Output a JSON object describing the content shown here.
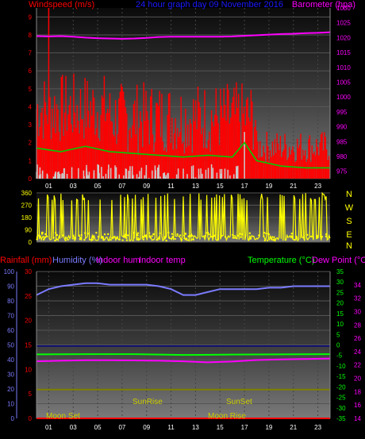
{
  "header": {
    "left": "Windspeed (m/s)",
    "center": "24 hour graph day  09 November 2016",
    "right": "Barometer (hpa)"
  },
  "colors": {
    "wind": "#ff0000",
    "wind_avg": "#00cc00",
    "gust_bars": "#cccccc",
    "barometer": "#ff00ff",
    "direction": "#ffff00",
    "rain": "#ff0000",
    "humidity": "#7b7bff",
    "indoor_hum": "#ff00ff",
    "indoor_temp": "#ff00ff",
    "temperature": "#00ff00",
    "dew_point": "#ff00ff",
    "axis_tick": "#ffff00"
  },
  "chart_data": [
    {
      "type": "line",
      "title": "24 hour graph day  09 November 2016",
      "x_ticks": [
        "01",
        "03",
        "05",
        "07",
        "09",
        "11",
        "13",
        "15",
        "17",
        "19",
        "21",
        "23"
      ],
      "xlim": [
        0,
        24
      ],
      "left_axis": {
        "label": "Windspeed (m/s)",
        "ylim": [
          0,
          9.5
        ],
        "ticks": [
          "0",
          "1",
          "2",
          "3",
          "4",
          "5",
          "6",
          "7",
          "8",
          "9"
        ]
      },
      "right_axis": {
        "label": "Barometer (hpa)",
        "ylim": [
          972.5,
          1030
        ],
        "ticks": [
          "975",
          "980",
          "985",
          "990",
          "995",
          "1000",
          "1005",
          "1010",
          "1015",
          "1020",
          "1025",
          "1030"
        ]
      },
      "series": [
        {
          "axis": "right",
          "x": [
            0,
            1,
            2,
            3,
            4,
            5,
            6,
            7,
            8,
            9,
            10,
            11,
            12,
            13,
            14,
            15,
            16,
            17,
            18,
            19,
            20,
            21,
            22,
            23,
            24
          ],
          "values": [
            1020.5,
            1020.4,
            1020.5,
            1020.3,
            1020.0,
            1019.8,
            1019.7,
            1019.6,
            1019.7,
            1019.9,
            1020.2,
            1020.3,
            1020.3,
            1020.3,
            1020.3,
            1020.3,
            1020.4,
            1020.6,
            1020.8,
            1021.0,
            1021.2,
            1021.3,
            1021.5,
            1021.6,
            1021.8
          ]
        },
        {
          "axis": "left",
          "x": [
            0,
            2,
            4,
            6,
            8,
            10,
            12,
            14,
            16,
            17,
            18,
            20,
            22,
            24
          ],
          "values": [
            1.7,
            1.5,
            1.8,
            1.5,
            1.4,
            1.3,
            1.2,
            1.3,
            1.2,
            2.0,
            1.0,
            0.7,
            0.6,
            0.6
          ]
        }
      ]
    },
    {
      "type": "scatter",
      "xlim": [
        0,
        24
      ],
      "ylim": [
        0,
        360
      ],
      "y_ticks": [
        "0",
        "90",
        "180",
        "270",
        "360"
      ],
      "direction_labels": [
        "N",
        "W",
        "S",
        "E",
        "N"
      ]
    },
    {
      "type": "line",
      "xlim": [
        0,
        24
      ],
      "legend": [
        "Rainfall (mm)",
        "Humidity (%)",
        "Indoor hum",
        "Indoor temp",
        "Temperature (°C)",
        "Dew Point (°C)"
      ],
      "axes": {
        "rain": {
          "ylim": [
            0,
            30
          ],
          "ticks": [
            "0",
            "5",
            "10",
            "15",
            "20",
            "25",
            "30"
          ]
        },
        "humidity": {
          "ylim": [
            0,
            100
          ],
          "ticks": [
            "0",
            "10",
            "20",
            "30",
            "40",
            "50",
            "60",
            "70",
            "80",
            "90",
            "100"
          ]
        },
        "temperature": {
          "ylim": [
            -35,
            35
          ],
          "ticks": [
            "-35",
            "-30",
            "-25",
            "-20",
            "-15",
            "-10",
            "-5",
            "0",
            "5",
            "10",
            "15",
            "20",
            "25",
            "30",
            "35"
          ]
        },
        "dew_point": {
          "ylim": [
            14,
            36
          ],
          "ticks": [
            "14",
            "16",
            "18",
            "20",
            "22",
            "24",
            "26",
            "28",
            "30",
            "32",
            "34"
          ]
        }
      },
      "series": [
        {
          "name": "Humidity (%)",
          "axis": "humidity",
          "x": [
            0,
            0.5,
            1,
            2,
            3,
            4,
            5,
            6,
            7,
            8,
            9,
            10,
            11,
            12,
            13,
            14,
            15,
            16,
            17,
            18,
            19,
            20,
            21,
            22,
            23,
            24
          ],
          "values": [
            84,
            86,
            88,
            90,
            91,
            92,
            92,
            91,
            91,
            91,
            91,
            90,
            88,
            84,
            84,
            86,
            88,
            88,
            88,
            88,
            89,
            89,
            90,
            90,
            90,
            90
          ]
        },
        {
          "name": "Temperature (°C)",
          "axis": "temperature",
          "x": [
            0,
            4,
            8,
            12,
            16,
            20,
            24
          ],
          "values": [
            -4.5,
            -4.4,
            -4.4,
            -4.8,
            -4.6,
            -4.5,
            -4.4
          ]
        },
        {
          "name": "Dew Point (°C)",
          "axis": "temperature",
          "x": [
            0,
            2,
            4,
            6,
            8,
            10,
            12,
            14,
            16,
            18,
            20,
            22,
            24
          ],
          "values": [
            -7.8,
            -7.5,
            -7.3,
            -7.3,
            -7.4,
            -7.5,
            -7.8,
            -8.3,
            -7.9,
            -7.2,
            -6.9,
            -6.7,
            -6.5
          ]
        },
        {
          "name": "Indoor temp",
          "axis": "temperature",
          "x": [
            0,
            24
          ],
          "values": [
            -21.3,
            -21.3
          ]
        },
        {
          "name": "Indoor hum",
          "axis": "temperature",
          "x": [
            0,
            24
          ],
          "values": [
            -0.5,
            -0.5
          ]
        },
        {
          "name": "Rainfall (mm)",
          "axis": "rain",
          "x": [
            0,
            24
          ],
          "values": [
            0,
            0
          ]
        }
      ],
      "annotations": [
        "Moon Set",
        "SunRise",
        "SunSet",
        "Moon Rise"
      ]
    }
  ]
}
